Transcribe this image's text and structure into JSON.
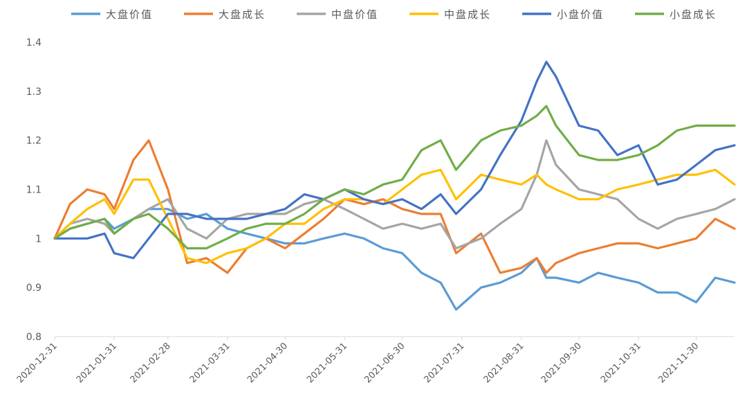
{
  "chart_data": {
    "type": "line",
    "title": "",
    "xlabel": "",
    "ylabel": "",
    "ylim": [
      0.8,
      1.4
    ],
    "yticks": [
      "0.8",
      "0.9",
      "1",
      "1.1",
      "1.2",
      "1.3",
      "1.4"
    ],
    "xticks": [
      "2020-12-31",
      "2021-01-31",
      "2021-02-28",
      "2021-03-31",
      "2021-04-30",
      "2021-05-31",
      "2021-06-30",
      "2021-07-31",
      "2021-08-31",
      "2021-09-30",
      "2021-10-31",
      "2021-11-30"
    ],
    "xlim": [
      "2020-12-31",
      "2021-12-20"
    ],
    "grid": false,
    "legend_position": "top",
    "x": [
      "2020-12-31",
      "2021-01-08",
      "2021-01-17",
      "2021-01-26",
      "2021-01-31",
      "2021-02-10",
      "2021-02-18",
      "2021-02-28",
      "2021-03-10",
      "2021-03-20",
      "2021-03-31",
      "2021-04-10",
      "2021-04-20",
      "2021-04-30",
      "2021-05-10",
      "2021-05-20",
      "2021-05-31",
      "2021-06-10",
      "2021-06-20",
      "2021-06-30",
      "2021-07-10",
      "2021-07-20",
      "2021-07-28",
      "2021-08-10",
      "2021-08-20",
      "2021-08-31",
      "2021-09-08",
      "2021-09-13",
      "2021-09-18",
      "2021-09-30",
      "2021-10-10",
      "2021-10-20",
      "2021-10-31",
      "2021-11-10",
      "2021-11-20",
      "2021-11-30",
      "2021-12-10",
      "2021-12-20"
    ],
    "series": [
      {
        "name": "大盘价值",
        "color": "#5b9bd5",
        "values": [
          1.0,
          1.02,
          1.03,
          1.04,
          1.02,
          1.04,
          1.06,
          1.06,
          1.04,
          1.05,
          1.02,
          1.01,
          1.0,
          0.99,
          0.99,
          1.0,
          1.01,
          1.0,
          0.98,
          0.97,
          0.93,
          0.91,
          0.855,
          0.9,
          0.91,
          0.93,
          0.96,
          0.92,
          0.92,
          0.91,
          0.93,
          0.92,
          0.91,
          0.89,
          0.89,
          0.87,
          0.92,
          0.91
        ]
      },
      {
        "name": "大盘成长",
        "color": "#ed7d31",
        "values": [
          1.0,
          1.07,
          1.1,
          1.09,
          1.06,
          1.16,
          1.2,
          1.1,
          0.95,
          0.96,
          0.93,
          0.98,
          1.0,
          0.98,
          1.01,
          1.04,
          1.08,
          1.07,
          1.08,
          1.06,
          1.05,
          1.05,
          0.97,
          1.01,
          0.93,
          0.94,
          0.96,
          0.93,
          0.95,
          0.97,
          0.98,
          0.99,
          0.99,
          0.98,
          0.99,
          1.0,
          1.04,
          1.02
        ]
      },
      {
        "name": "中盘价值",
        "color": "#a5a5a5",
        "values": [
          1.0,
          1.03,
          1.04,
          1.03,
          1.01,
          1.04,
          1.06,
          1.08,
          1.02,
          1.0,
          1.04,
          1.05,
          1.05,
          1.05,
          1.07,
          1.08,
          1.06,
          1.04,
          1.02,
          1.03,
          1.02,
          1.03,
          0.98,
          1.0,
          1.03,
          1.06,
          1.13,
          1.2,
          1.15,
          1.1,
          1.09,
          1.08,
          1.04,
          1.02,
          1.04,
          1.05,
          1.06,
          1.08
        ]
      },
      {
        "name": "中盘成长",
        "color": "#ffc000",
        "values": [
          1.0,
          1.03,
          1.06,
          1.08,
          1.05,
          1.12,
          1.12,
          1.04,
          0.96,
          0.95,
          0.97,
          0.98,
          1.0,
          1.03,
          1.03,
          1.06,
          1.08,
          1.08,
          1.07,
          1.1,
          1.13,
          1.14,
          1.08,
          1.13,
          1.12,
          1.11,
          1.13,
          1.11,
          1.1,
          1.08,
          1.08,
          1.1,
          1.11,
          1.12,
          1.13,
          1.13,
          1.14,
          1.11
        ]
      },
      {
        "name": "小盘价值",
        "color": "#4472c4",
        "values": [
          1.0,
          1.0,
          1.0,
          1.01,
          0.97,
          0.96,
          1.0,
          1.05,
          1.05,
          1.04,
          1.04,
          1.04,
          1.05,
          1.06,
          1.09,
          1.08,
          1.1,
          1.08,
          1.07,
          1.08,
          1.06,
          1.09,
          1.05,
          1.1,
          1.17,
          1.24,
          1.32,
          1.36,
          1.33,
          1.23,
          1.22,
          1.17,
          1.19,
          1.11,
          1.12,
          1.15,
          1.18,
          1.19
        ]
      },
      {
        "name": "小盘成长",
        "color": "#70ad47",
        "values": [
          1.0,
          1.02,
          1.03,
          1.04,
          1.01,
          1.04,
          1.05,
          1.02,
          0.98,
          0.98,
          1.0,
          1.02,
          1.03,
          1.03,
          1.05,
          1.08,
          1.1,
          1.09,
          1.11,
          1.12,
          1.18,
          1.2,
          1.14,
          1.2,
          1.22,
          1.23,
          1.25,
          1.27,
          1.23,
          1.17,
          1.16,
          1.16,
          1.17,
          1.19,
          1.22,
          1.23,
          1.23,
          1.23
        ]
      }
    ]
  }
}
